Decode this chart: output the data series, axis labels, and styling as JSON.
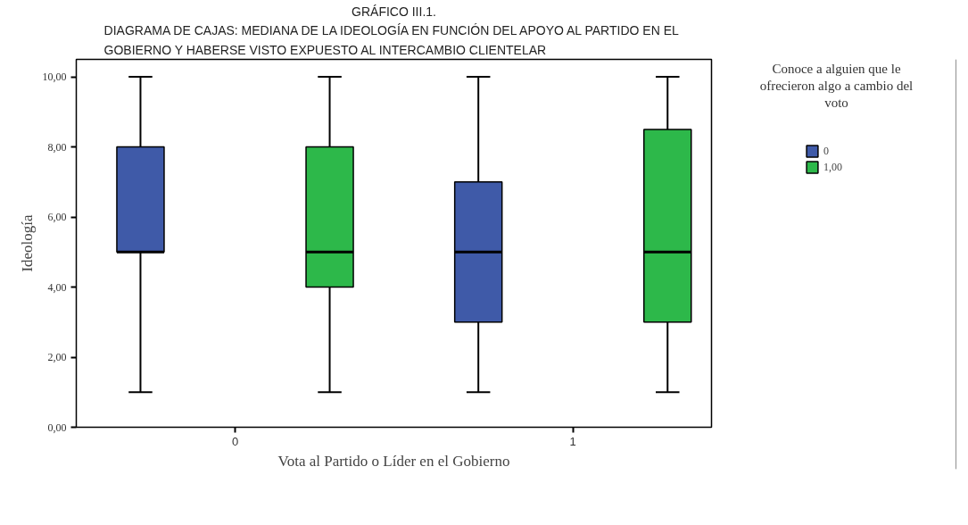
{
  "chart_data": {
    "type": "box",
    "title": "GRÁFICO III.1.",
    "subtitle": "DIAGRAMA DE CAJAS: MEDIANA DE LA IDEOLOGÍA EN FUNCIÓN DEL APOYO AL PARTIDO EN EL GOBIERNO Y HABERSE VISTO EXPUESTO AL INTERCAMBIO CLIENTELAR",
    "xlabel": "Vota al Partido o Líder en el Gobierno",
    "ylabel": "Ideología",
    "legend_title": "Conoce a alguien que le ofrecieron algo a cambio del voto",
    "categories": [
      "0",
      "1"
    ],
    "series": [
      {
        "name": "0",
        "color": "#3f5aa8",
        "boxes": [
          {
            "low": 1,
            "q1": 5,
            "median": 5,
            "q3": 8,
            "high": 10
          },
          {
            "low": 1,
            "q1": 3,
            "median": 5,
            "q3": 7,
            "high": 10
          }
        ]
      },
      {
        "name": "1,00",
        "color": "#2db84a",
        "boxes": [
          {
            "low": 1,
            "q1": 4,
            "median": 5,
            "q3": 8,
            "high": 10
          },
          {
            "low": 1,
            "q1": 3,
            "median": 5,
            "q3": 8.5,
            "high": 10
          }
        ]
      }
    ],
    "ylim": [
      0,
      10.5
    ],
    "yticks": [
      {
        "value": 0,
        "label": "0,00"
      },
      {
        "value": 2,
        "label": "2,00"
      },
      {
        "value": 4,
        "label": "4,00"
      },
      {
        "value": 6,
        "label": "6,00"
      },
      {
        "value": 8,
        "label": "8,00"
      },
      {
        "value": 10,
        "label": "10,00"
      }
    ],
    "grid": false,
    "legend": "right"
  }
}
